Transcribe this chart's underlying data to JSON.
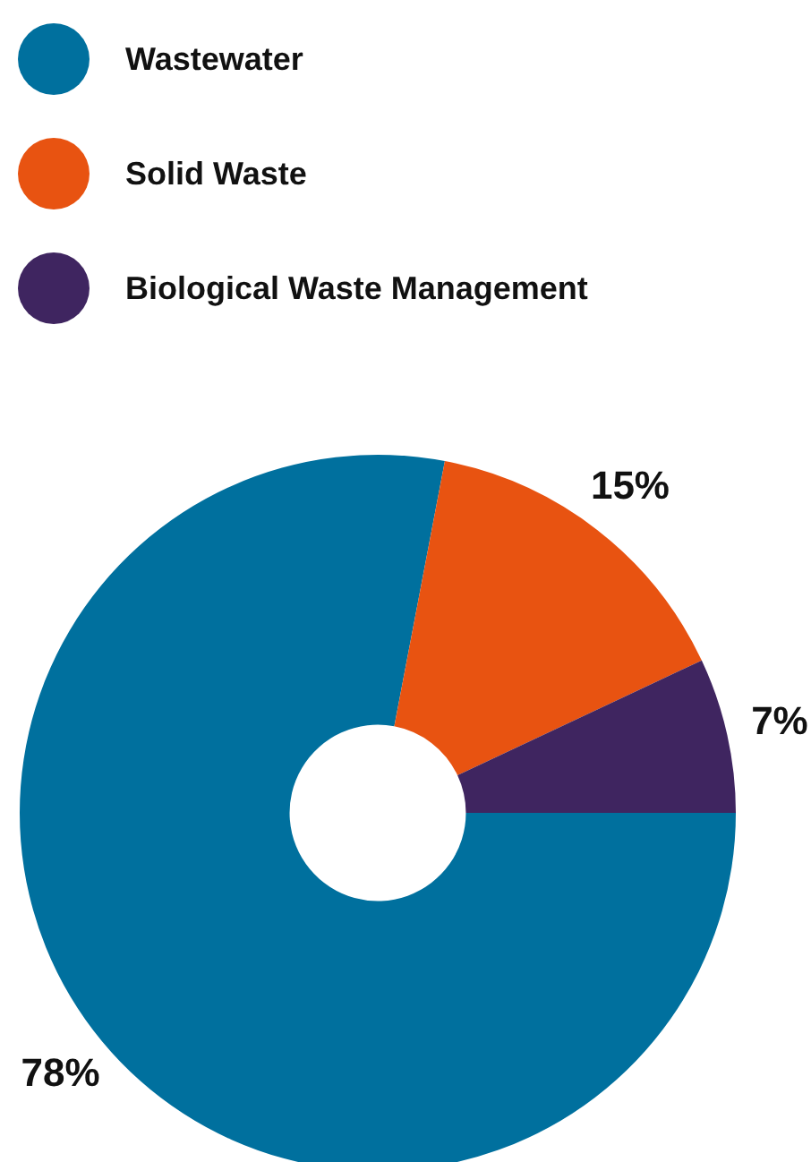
{
  "chart_data": {
    "type": "donut",
    "categories": [
      "Wastewater",
      "Solid Waste",
      "Biological Waste Management"
    ],
    "values": [
      78,
      15,
      7
    ],
    "colors": [
      "#00709e",
      "#e85311",
      "#3f2560"
    ],
    "value_labels": [
      "78%",
      "15%",
      "7%"
    ],
    "legend": "top left"
  }
}
